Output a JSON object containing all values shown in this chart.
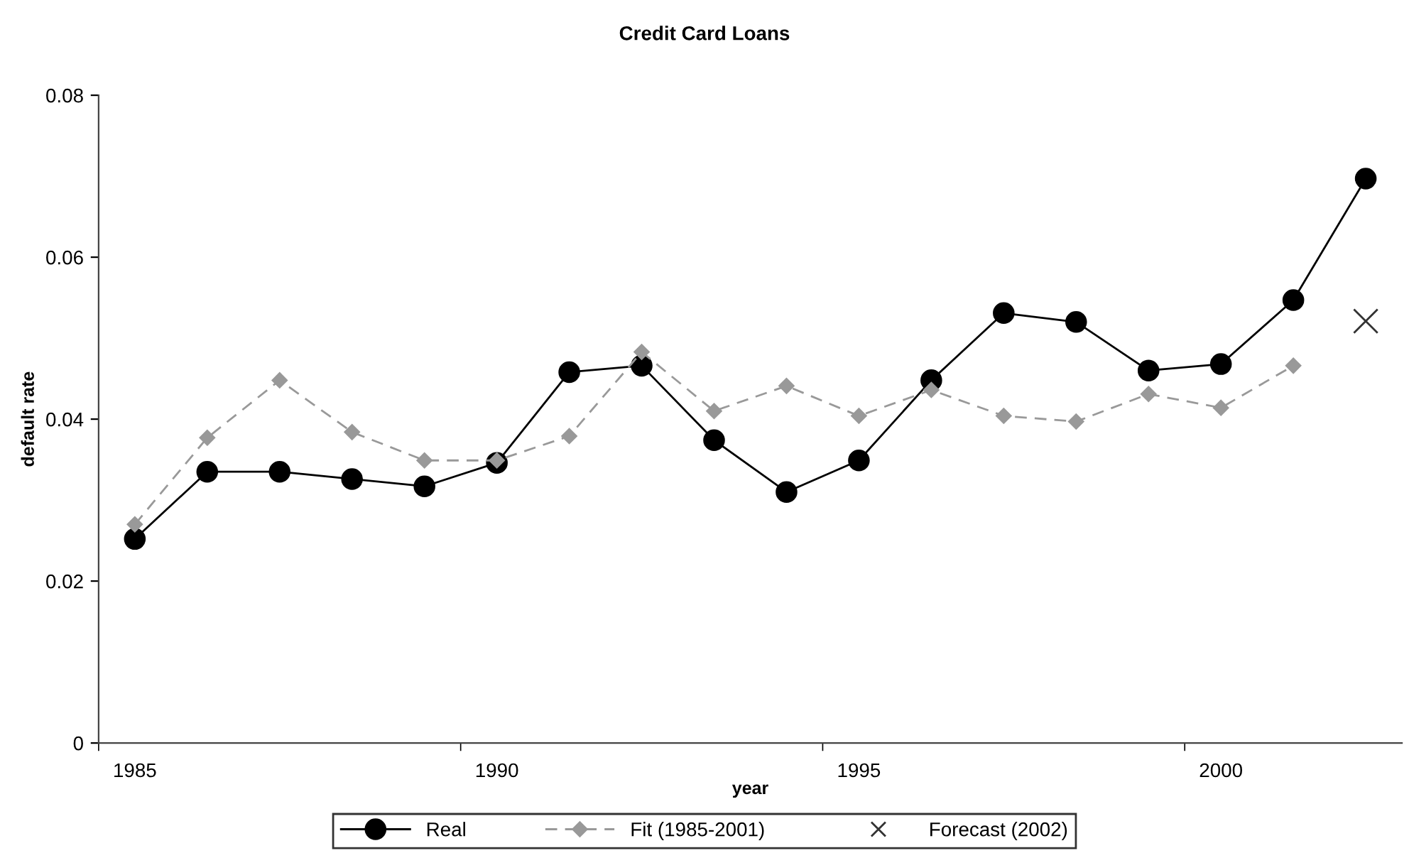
{
  "chart_data": {
    "type": "line",
    "title": "Credit Card Loans",
    "xlabel": "year",
    "ylabel": "default rate",
    "categories": [
      "1985",
      null,
      null,
      null,
      null,
      "1990",
      null,
      null,
      null,
      null,
      "1995",
      null,
      null,
      null,
      null,
      "2000",
      null,
      null
    ],
    "series": [
      {
        "name": "Real",
        "color": "#000000",
        "marker": "circle",
        "line_style": "solid",
        "values": [
          0.0252,
          0.0335,
          0.0335,
          0.0326,
          0.0317,
          0.0346,
          0.0458,
          0.0466,
          0.0374,
          0.031,
          0.0349,
          0.0448,
          0.0531,
          0.052,
          0.046,
          0.0468,
          0.0547,
          0.0697
        ]
      },
      {
        "name": "Fit (1985-2001)",
        "color": "#999999",
        "marker": "diamond",
        "line_style": "dashed",
        "values": [
          0.027,
          0.0377,
          0.0448,
          0.0384,
          0.0349,
          0.0349,
          0.0379,
          0.0483,
          0.041,
          0.0441,
          0.0404,
          0.0436,
          0.0404,
          0.0397,
          0.0431,
          0.0414,
          0.0466,
          null
        ]
      },
      {
        "name": "Forecast (2002)",
        "type": "scatter",
        "color": "#333333",
        "marker": "cross",
        "values": [
          null,
          null,
          null,
          null,
          null,
          null,
          null,
          null,
          null,
          null,
          null,
          null,
          null,
          null,
          null,
          null,
          null,
          0.0521
        ]
      }
    ],
    "ylim": [
      0,
      0.08
    ],
    "yticks": [
      0,
      0.02,
      0.04,
      0.06,
      0.08
    ],
    "grid": false,
    "legend": "bottom"
  }
}
